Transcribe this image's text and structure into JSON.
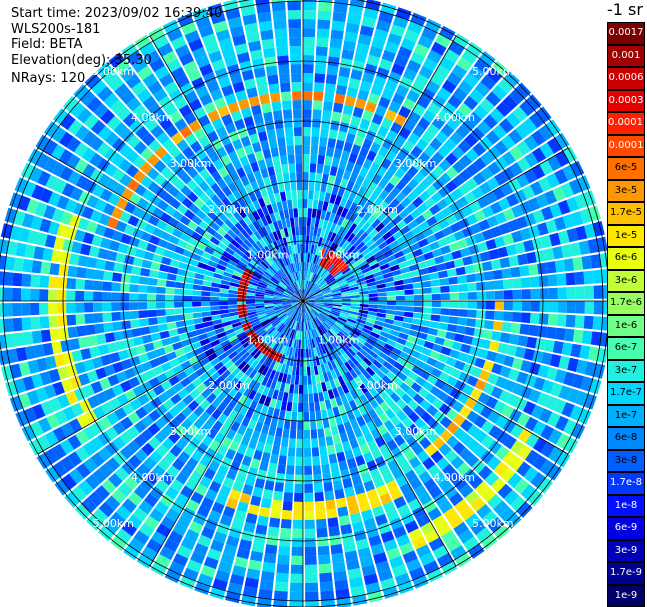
{
  "header": {
    "start_time": "Start time: 2023/09/02 16:39:40",
    "instrument": "WLS200s-181",
    "field": "Field: BETA",
    "elevation": "Elevation(deg): 35.30",
    "nrays": "NRays: 120"
  },
  "colorbar": {
    "unit_label": "-1 sr",
    "ticks": [
      {
        "label": "0.0017",
        "color": "#7a0000",
        "text_color": "#ffffff"
      },
      {
        "label": "0.001",
        "color": "#a00000",
        "text_color": "#ffffff"
      },
      {
        "label": "0.0006",
        "color": "#c80000",
        "text_color": "#ffffff"
      },
      {
        "label": "0.0003",
        "color": "#e60000",
        "text_color": "#ffffff"
      },
      {
        "label": "0.00017",
        "color": "#ff2000",
        "text_color": "#ffffff"
      },
      {
        "label": "0.0001",
        "color": "#ff4800",
        "text_color": "#ffffff"
      },
      {
        "label": "6e-5",
        "color": "#ff7000",
        "text_color": "#000000"
      },
      {
        "label": "3e-5",
        "color": "#ff9800",
        "text_color": "#000000"
      },
      {
        "label": "1.7e-5",
        "color": "#ffc000",
        "text_color": "#000000"
      },
      {
        "label": "1e-5",
        "color": "#ffe800",
        "text_color": "#000000"
      },
      {
        "label": "6e-6",
        "color": "#e8ff10",
        "text_color": "#000000"
      },
      {
        "label": "3e-6",
        "color": "#c0ff38",
        "text_color": "#000000"
      },
      {
        "label": "1.7e-6",
        "color": "#98ff60",
        "text_color": "#000000"
      },
      {
        "label": "1e-6",
        "color": "#70ff88",
        "text_color": "#000000"
      },
      {
        "label": "6e-7",
        "color": "#48ffb0",
        "text_color": "#000000"
      },
      {
        "label": "3e-7",
        "color": "#20f0e0",
        "text_color": "#000000"
      },
      {
        "label": "1.7e-7",
        "color": "#00d8ff",
        "text_color": "#000000"
      },
      {
        "label": "1e-7",
        "color": "#00b0ff",
        "text_color": "#000000"
      },
      {
        "label": "6e-8",
        "color": "#0088ff",
        "text_color": "#000000"
      },
      {
        "label": "3e-8",
        "color": "#0060ff",
        "text_color": "#000000"
      },
      {
        "label": "1.7e-8",
        "color": "#0038ff",
        "text_color": "#ffffff"
      },
      {
        "label": "1e-8",
        "color": "#0010ff",
        "text_color": "#ffffff"
      },
      {
        "label": "6e-9",
        "color": "#0000e0",
        "text_color": "#ffffff"
      },
      {
        "label": "3e-9",
        "color": "#0000b8",
        "text_color": "#ffffff"
      },
      {
        "label": "1.7e-9",
        "color": "#000090",
        "text_color": "#ffffff"
      },
      {
        "label": "1e-9",
        "color": "#000068",
        "text_color": "#ffffff"
      }
    ]
  },
  "chart_data": {
    "type": "heatmap",
    "projection": "polar (PPI scan)",
    "field": "BETA",
    "nrays": 120,
    "range_unit": "km",
    "max_range_km": 5.1,
    "range_rings_km": [
      1,
      2,
      3,
      4,
      5
    ],
    "ring_labels": [
      "1.00km",
      "2.00km",
      "3.00km",
      "4.00km",
      "5.00km"
    ],
    "radial_lines_deg": [
      0,
      30,
      60,
      90,
      120,
      150,
      180,
      210,
      240,
      270,
      300,
      330
    ],
    "scale": "log",
    "value_range": [
      1e-09,
      0.0017
    ],
    "background_beta": 1e-07,
    "features": [
      {
        "name": "inner arc",
        "range_km": [
          0.9,
          1.05
        ],
        "azimuth_deg": [
          200,
          300
        ],
        "beta": 0.0006
      },
      {
        "name": "inner arc NE",
        "range_km": [
          0.7,
          0.9
        ],
        "azimuth_deg": [
          20,
          55
        ],
        "beta": 0.0003
      },
      {
        "name": "ring N",
        "range_km": [
          3.4,
          3.55
        ],
        "azimuth_deg": [
          290,
          30
        ],
        "beta": 3e-05
      },
      {
        "name": "ring E",
        "range_km": [
          3.2,
          3.4
        ],
        "azimuth_deg": [
          90,
          140
        ],
        "beta": 1.7e-05
      },
      {
        "name": "ring S",
        "range_km": [
          3.3,
          3.6
        ],
        "azimuth_deg": [
          150,
          200
        ],
        "beta": 1e-05
      },
      {
        "name": "ring W",
        "range_km": [
          4.0,
          4.2
        ],
        "azimuth_deg": [
          240,
          290
        ],
        "beta": 6e-06
      },
      {
        "name": "outer ring SE",
        "range_km": [
          4.3,
          4.5
        ],
        "azimuth_deg": [
          120,
          160
        ],
        "beta": 6e-06
      }
    ]
  }
}
